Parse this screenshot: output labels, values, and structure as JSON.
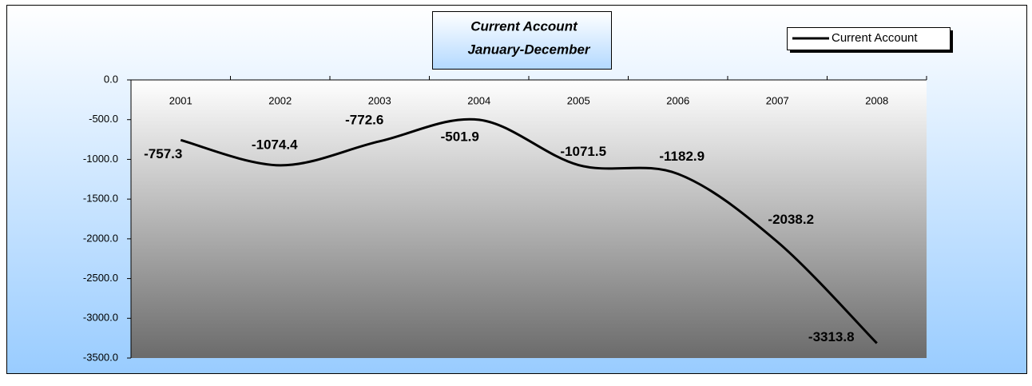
{
  "chart_data": {
    "type": "line",
    "title": "Current Account",
    "subtitle": "January-December",
    "categories": [
      "2001",
      "2002",
      "2003",
      "2004",
      "2005",
      "2006",
      "2007",
      "2008"
    ],
    "series": [
      {
        "name": "Current Account",
        "color": "#000000",
        "values": [
          -757.3,
          -1074.4,
          -772.6,
          -501.9,
          -1071.5,
          -1182.9,
          -2038.2,
          -3313.8
        ]
      }
    ],
    "ylim": [
      -3500,
      0
    ],
    "yticks": [
      {
        "value": 0,
        "label": "0.0"
      },
      {
        "value": -500,
        "label": "-500.0"
      },
      {
        "value": -1000,
        "label": "-1000.0"
      },
      {
        "value": -1500,
        "label": "-1500.0"
      },
      {
        "value": -2000,
        "label": "-2000.0"
      },
      {
        "value": -2500,
        "label": "-2500.0"
      },
      {
        "value": -3000,
        "label": "-3000.0"
      },
      {
        "value": -3500,
        "label": "-3500.0"
      }
    ],
    "smooth": true,
    "legend": "top-right"
  }
}
